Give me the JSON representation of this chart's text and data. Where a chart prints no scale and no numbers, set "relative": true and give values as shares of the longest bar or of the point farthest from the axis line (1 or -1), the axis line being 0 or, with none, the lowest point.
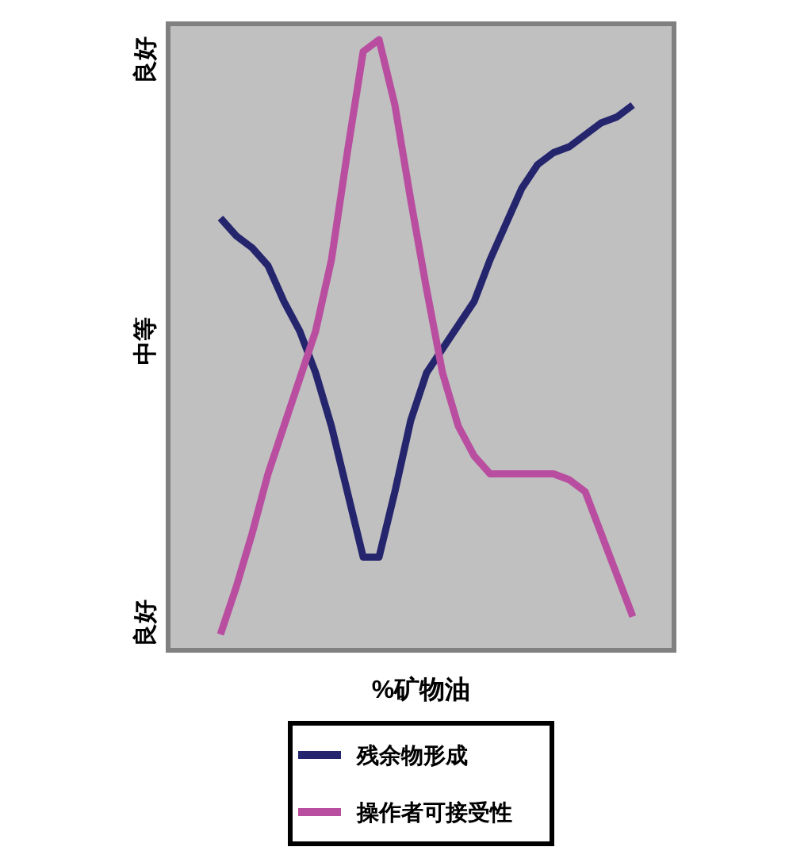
{
  "chart_data": {
    "type": "line",
    "xlabel": "%矿物油",
    "relative": true,
    "categories": [
      null,
      null,
      null,
      null,
      null,
      null,
      null,
      null,
      null,
      null,
      null,
      null,
      null,
      null,
      null,
      null,
      null,
      null,
      null,
      null,
      null,
      null,
      null,
      null,
      null,
      null,
      null
    ],
    "annotations": [
      "良好",
      "中等",
      "良好"
    ],
    "legend": "bottom",
    "series": [
      {
        "name": "残余物形成",
        "color": "#25256e",
        "values": [
          0.7,
          0.67,
          0.65,
          0.62,
          0.56,
          0.51,
          0.44,
          0.35,
          0.24,
          0.13,
          0.13,
          0.24,
          0.36,
          0.44,
          0.48,
          0.52,
          0.56,
          0.63,
          0.69,
          0.75,
          0.79,
          0.81,
          0.82,
          0.84,
          0.86,
          0.87,
          0.89
        ]
      },
      {
        "name": "操作者可接受性",
        "color": "#b94ea0",
        "values": [
          0,
          0.08,
          0.17,
          0.27,
          0.35,
          0.43,
          0.51,
          0.63,
          0.81,
          0.98,
          1,
          0.89,
          0.73,
          0.58,
          0.44,
          0.35,
          0.3,
          0.27,
          0.27,
          0.27,
          0.27,
          0.27,
          0.26,
          0.24,
          0.17,
          0.1,
          0.03
        ]
      }
    ]
  }
}
